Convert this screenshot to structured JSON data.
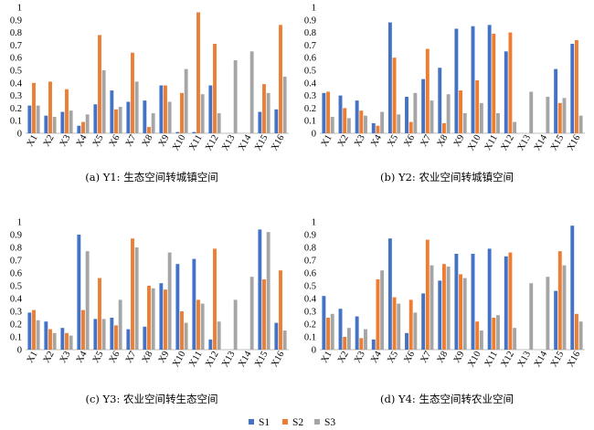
{
  "colors": {
    "S1": "#4472c4",
    "S2": "#ed7d31",
    "S3": "#a5a5a5"
  },
  "legend": [
    "S1",
    "S2",
    "S3"
  ],
  "chart_data": [
    {
      "type": "bar",
      "caption": "(a) Y1: 生态空间转城镇空间",
      "categories": [
        "X1",
        "X2",
        "X3",
        "X4",
        "X5",
        "X6",
        "X7",
        "X8",
        "X9",
        "X10",
        "X11",
        "X12",
        "X13",
        "X14",
        "X15",
        "X16"
      ],
      "ylim": [
        0,
        1.0
      ],
      "yticks": [
        "0",
        "0.1",
        "0.2",
        "0.3",
        "0.4",
        "0.5",
        "0.6",
        "0.7",
        "0.8",
        "0.9",
        "1"
      ],
      "series": [
        {
          "name": "S1",
          "values": [
            0.22,
            0.14,
            0.17,
            0.06,
            0.23,
            0.34,
            0.25,
            0.26,
            0.38,
            0.01,
            0.01,
            0.38,
            0,
            0,
            0.17,
            0.19
          ]
        },
        {
          "name": "S2",
          "values": [
            0.4,
            0.41,
            0.35,
            0.09,
            0.78,
            0.19,
            0.64,
            0.05,
            0.38,
            0.32,
            0.96,
            0.71,
            0,
            0,
            0.39,
            0.86
          ]
        },
        {
          "name": "S3",
          "values": [
            0.22,
            0.13,
            0.18,
            0.15,
            0.5,
            0.21,
            0.41,
            0.16,
            0.25,
            0.51,
            0.31,
            0.16,
            0.58,
            0.65,
            0.32,
            0.45
          ]
        }
      ]
    },
    {
      "type": "bar",
      "caption": "(b) Y2: 农业空间转城镇空间",
      "categories": [
        "X1",
        "X2",
        "X3",
        "X4",
        "X5",
        "X6",
        "X7",
        "X8",
        "X9",
        "X10",
        "X11",
        "X12",
        "X13",
        "X14",
        "X15",
        "X16"
      ],
      "ylim": [
        0,
        1.0
      ],
      "yticks": [
        "0",
        "0.1",
        "0.2",
        "0.3",
        "0.4",
        "0.5",
        "0.6",
        "0.7",
        "0.8",
        "0.9",
        "1"
      ],
      "series": [
        {
          "name": "S1",
          "values": [
            0.32,
            0.3,
            0.26,
            0.08,
            0.88,
            0.29,
            0.43,
            0.52,
            0.83,
            0.85,
            0.86,
            0.65,
            0,
            0,
            0.51,
            0.71
          ]
        },
        {
          "name": "S2",
          "values": [
            0.33,
            0.2,
            0.18,
            0.06,
            0.6,
            0.09,
            0.67,
            0.08,
            0.34,
            0.42,
            0.79,
            0.8,
            0,
            0,
            0.24,
            0.74
          ]
        },
        {
          "name": "S3",
          "values": [
            0.13,
            0.12,
            0.14,
            0.17,
            0.15,
            0.32,
            0.26,
            0.31,
            0.16,
            0.24,
            0.16,
            0.09,
            0.33,
            0.29,
            0.28,
            0.14
          ]
        }
      ]
    },
    {
      "type": "bar",
      "caption": "(c) Y3: 农业空间转生态空间",
      "categories": [
        "X1",
        "X2",
        "X3",
        "X4",
        "X5",
        "X6",
        "X7",
        "X8",
        "X9",
        "X10",
        "X11",
        "X12",
        "X13",
        "X14",
        "X15",
        "X16"
      ],
      "ylim": [
        0,
        1.0
      ],
      "yticks": [
        "0",
        "0.1",
        "0.2",
        "0.3",
        "0.4",
        "0.5",
        "0.6",
        "0.7",
        "0.8",
        "0.9",
        "1"
      ],
      "series": [
        {
          "name": "S1",
          "values": [
            0.29,
            0.22,
            0.17,
            0.9,
            0.24,
            0.25,
            0.16,
            0.18,
            0.52,
            0.67,
            0.71,
            0.08,
            0,
            0,
            0.94,
            0.21
          ]
        },
        {
          "name": "S2",
          "values": [
            0.31,
            0.16,
            0.13,
            0.31,
            0.56,
            0.19,
            0.87,
            0.5,
            0.47,
            0.3,
            0.39,
            0.79,
            0,
            0,
            0.55,
            0.62
          ]
        },
        {
          "name": "S3",
          "values": [
            0.23,
            0.13,
            0.11,
            0.77,
            0.24,
            0.39,
            0.8,
            0.48,
            0.76,
            0.21,
            0.36,
            0.22,
            0.39,
            0.57,
            0.92,
            0.15
          ]
        }
      ]
    },
    {
      "type": "bar",
      "caption": "(d) Y4: 生态空间转农业空间",
      "categories": [
        "X1",
        "X2",
        "X3",
        "X4",
        "X5",
        "X6",
        "X7",
        "X8",
        "X9",
        "X10",
        "X11",
        "X12",
        "X13",
        "X14",
        "X15",
        "X16"
      ],
      "ylim": [
        0,
        1.0
      ],
      "yticks": [
        "0",
        "0.1",
        "0.2",
        "0.3",
        "0.4",
        "0.5",
        "0.6",
        "0.7",
        "0.8",
        "0.9",
        "1"
      ],
      "series": [
        {
          "name": "S1",
          "values": [
            0.42,
            0.32,
            0.26,
            0.08,
            0.87,
            0.13,
            0.44,
            0.54,
            0.75,
            0.75,
            0.79,
            0.73,
            0,
            0,
            0.46,
            0.97
          ]
        },
        {
          "name": "S2",
          "values": [
            0.25,
            0.1,
            0.09,
            0.55,
            0.41,
            0.39,
            0.86,
            0.67,
            0.59,
            0.22,
            0.25,
            0.76,
            0,
            0,
            0.77,
            0.28
          ]
        },
        {
          "name": "S3",
          "values": [
            0.28,
            0.17,
            0.16,
            0.62,
            0.36,
            0.29,
            0.66,
            0.65,
            0.56,
            0.15,
            0.27,
            0.17,
            0.52,
            0.57,
            0.66,
            0.22
          ]
        }
      ]
    }
  ]
}
